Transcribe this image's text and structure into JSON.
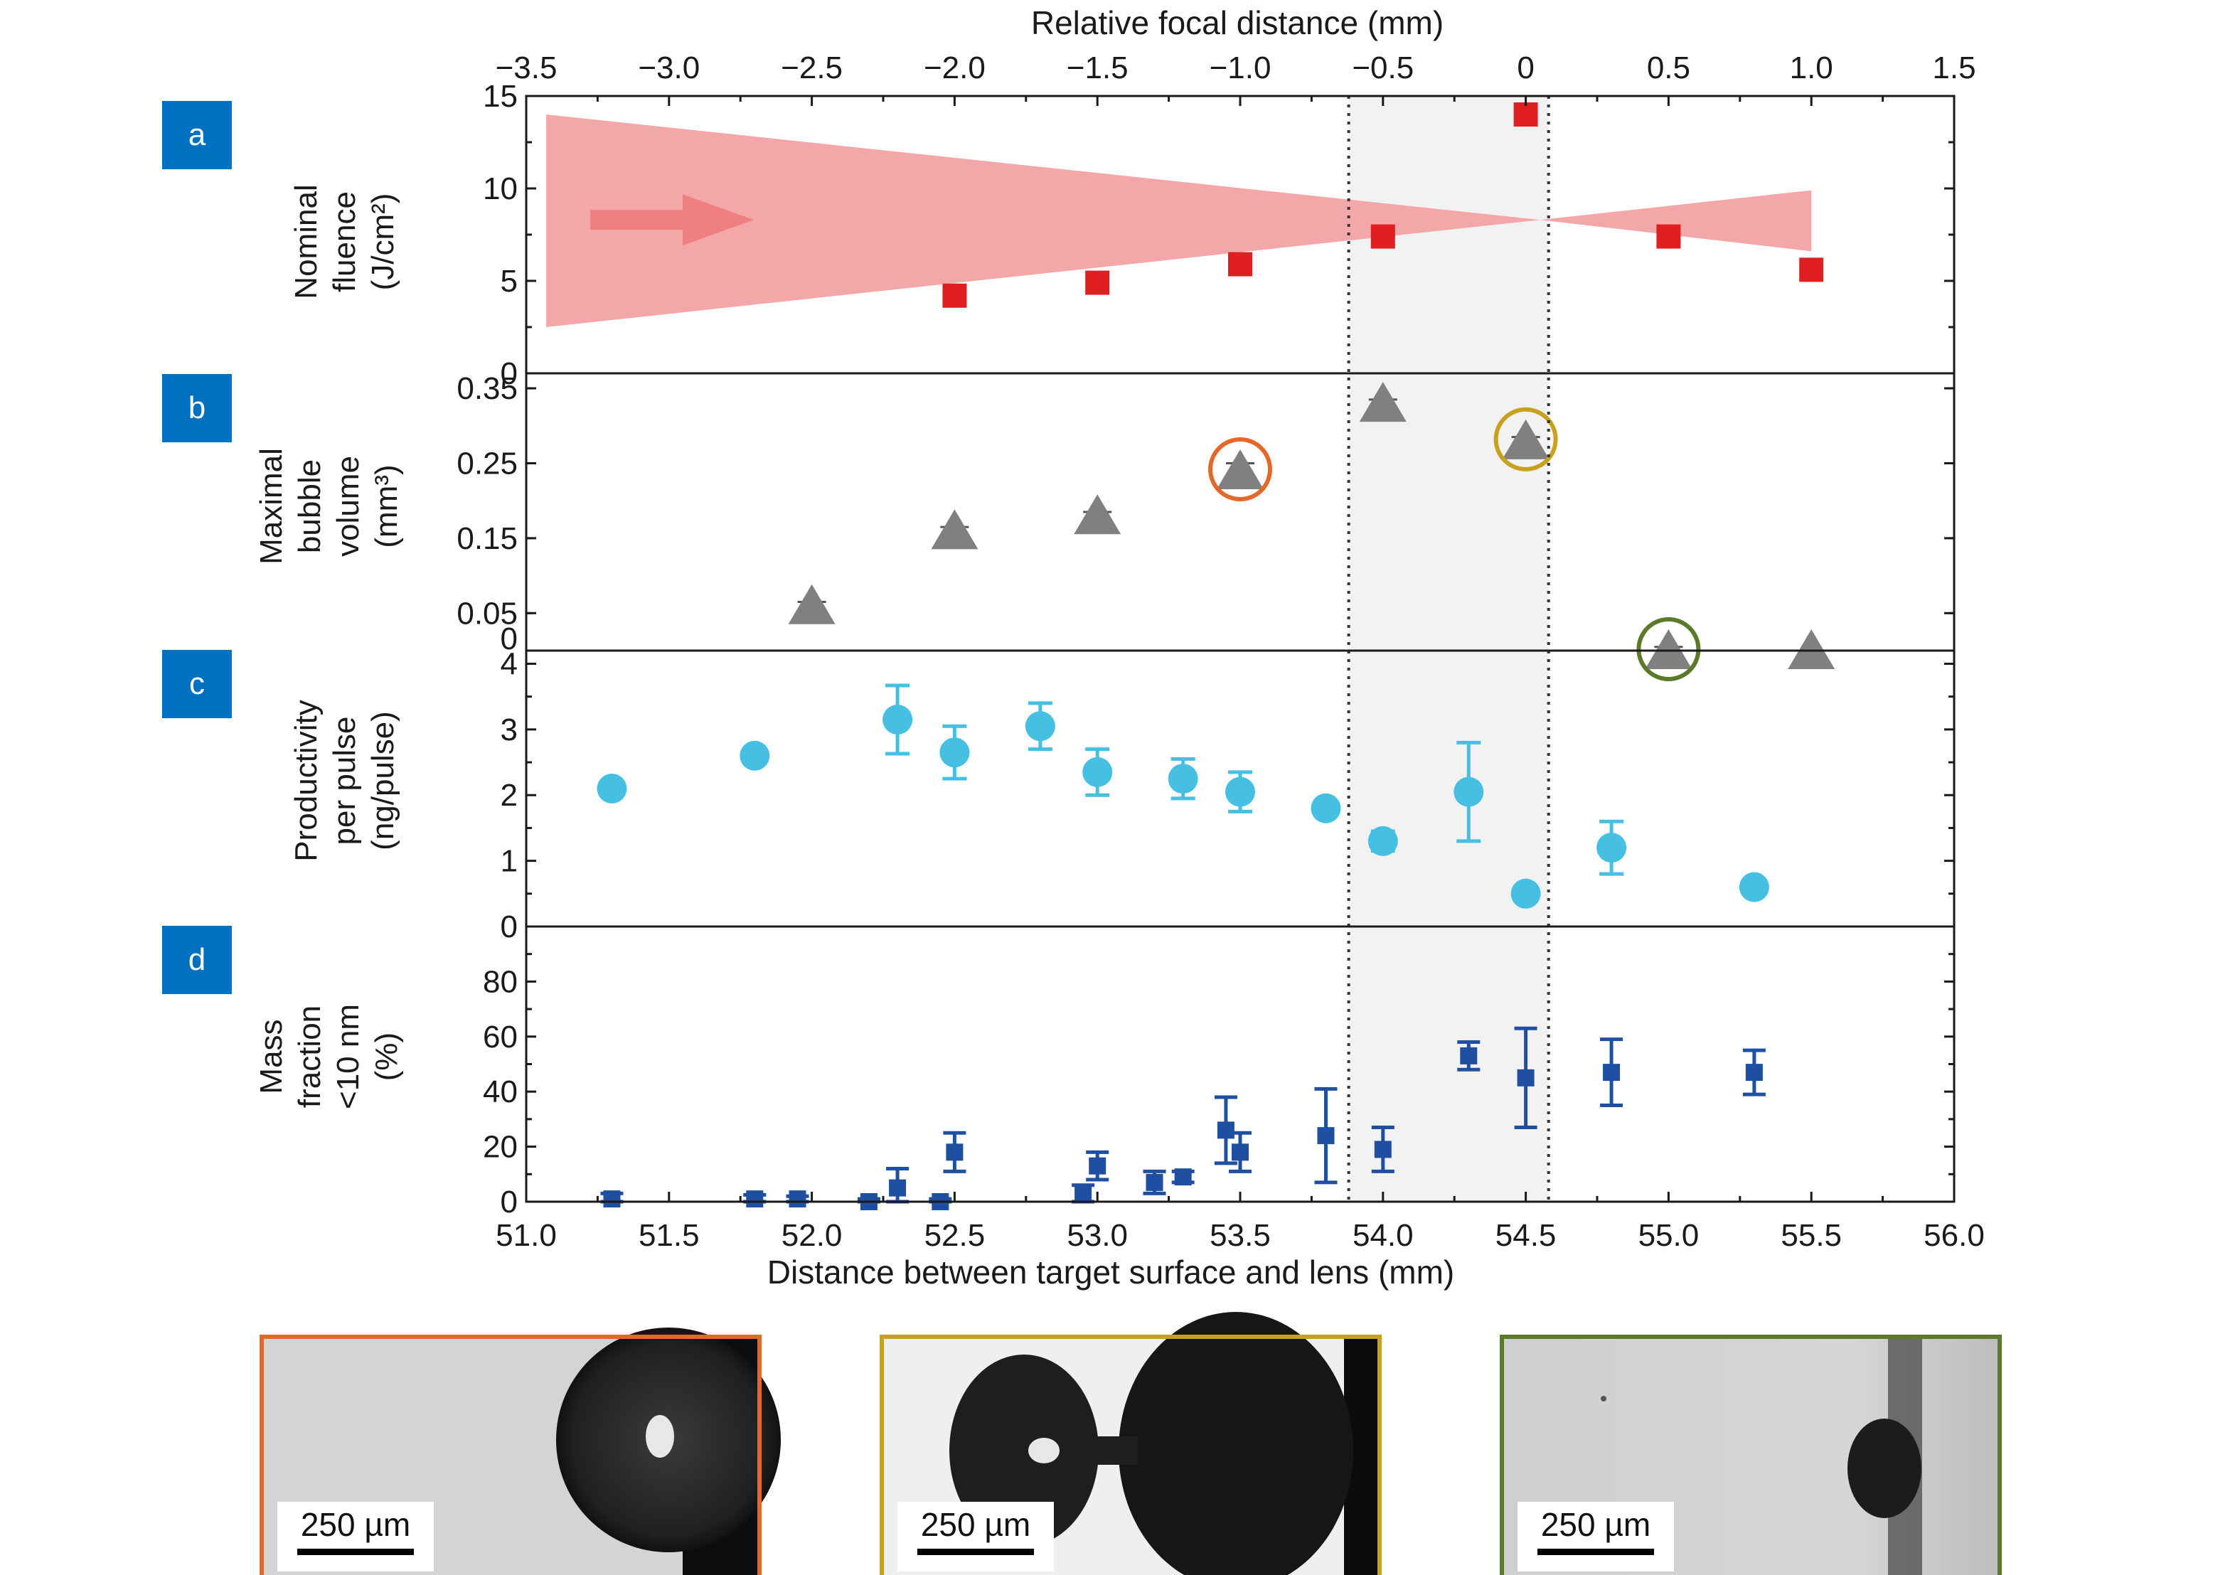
{
  "figure": {
    "top_axis": {
      "title": "Relative focal distance (mm)",
      "ticks": [
        "−3.5",
        "−3.0",
        "−2.5",
        "−2.0",
        "−1.5",
        "−1.0",
        "−0.5",
        "0",
        "0.5",
        "1.0",
        "1.5"
      ],
      "tick_values": [
        -3.5,
        -3.0,
        -2.5,
        -2.0,
        -1.5,
        -1.0,
        -0.5,
        0,
        0.5,
        1.0,
        1.5
      ],
      "range": [
        -3.5,
        1.5
      ]
    },
    "bottom_axis": {
      "title": "Distance between target surface and lens (mm)",
      "ticks": [
        "51.0",
        "51.5",
        "52.0",
        "52.5",
        "53.0",
        "53.5",
        "54.0",
        "54.5",
        "55.0",
        "55.5",
        "56.0"
      ],
      "tick_values": [
        51.0,
        51.5,
        52.0,
        52.5,
        53.0,
        53.5,
        54.0,
        54.5,
        55.0,
        55.5,
        56.0
      ],
      "range": [
        51.0,
        56.0
      ]
    },
    "focus_band": {
      "x_range": [
        53.88,
        54.58
      ],
      "color": "#f2f2f2"
    },
    "colors": {
      "badge": "#0070c0",
      "fluence": "#e02020",
      "beam": "#f4a7a9",
      "beam_arrow": "#ef7f80",
      "bubble": "#808080",
      "productivity": "#45c0e2",
      "mass_fraction": "#1f4fa0",
      "orange": "#e2692a",
      "gold": "#c8a11e",
      "green": "#5b7a2a"
    }
  },
  "panels": [
    {
      "badge": "a",
      "ylabel_lines": [
        "Nominal",
        "fluence",
        "(J/cm²)"
      ]
    },
    {
      "badge": "b",
      "ylabel_lines": [
        "Maximal",
        "bubble",
        "volume",
        "(mm³)"
      ]
    },
    {
      "badge": "c",
      "ylabel_lines": [
        "Productivity",
        "per pulse",
        "(ng/pulse)"
      ]
    },
    {
      "badge": "d",
      "ylabel_lines": [
        "Mass",
        "fraction",
        "<10 nm",
        "(%)"
      ]
    }
  ],
  "chart_data": [
    {
      "panel": "a",
      "type": "scatter",
      "marker": "square",
      "ylabel": "Nominal fluence (J/cm²)",
      "ylim": [
        0,
        15
      ],
      "yticks": [
        "0",
        "5",
        "10",
        "15"
      ],
      "ytick_values": [
        0,
        5,
        10,
        15
      ],
      "x": [
        52.5,
        53.0,
        53.5,
        54.0,
        54.5,
        55.0,
        55.5
      ],
      "y": [
        4.2,
        4.9,
        5.9,
        7.4,
        14.0,
        7.4,
        5.6
      ],
      "beam_cone": {
        "left_x": 51.07,
        "left_y": [
          2.5,
          14.0
        ],
        "waist_x": 54.55,
        "waist_y": 8.3,
        "right_x": 55.5,
        "right_y": [
          6.6,
          9.9
        ]
      }
    },
    {
      "panel": "b",
      "type": "scatter",
      "marker": "triangle",
      "ylabel": "Maximal bubble volume (mm³)",
      "ylim": [
        0,
        0.37
      ],
      "yticks": [
        "0",
        "0.05",
        "0.15",
        "0.25",
        "0.35"
      ],
      "ytick_values": [
        0,
        0.05,
        0.15,
        0.25,
        0.35
      ],
      "x": [
        52.0,
        52.5,
        53.0,
        53.5,
        54.0,
        54.5,
        55.0,
        55.5
      ],
      "y": [
        0.06,
        0.16,
        0.18,
        0.24,
        0.33,
        0.28,
        0.0,
        0.0
      ],
      "err": [
        0.005,
        0.005,
        0.005,
        0.01,
        0.005,
        0.005,
        0.005,
        0.0
      ],
      "highlights": [
        {
          "x": 53.5,
          "y": 0.24,
          "color": "orange"
        },
        {
          "x": 54.5,
          "y": 0.28,
          "color": "gold"
        },
        {
          "x": 55.0,
          "y": 0.0,
          "color": "green"
        }
      ]
    },
    {
      "panel": "c",
      "type": "scatter",
      "marker": "circle",
      "ylabel": "Productivity per pulse (ng/pulse)",
      "ylim": [
        0,
        4.2
      ],
      "yticks": [
        "0",
        "1",
        "2",
        "3",
        "4"
      ],
      "ytick_values": [
        0,
        1,
        2,
        3,
        4
      ],
      "x": [
        51.3,
        51.8,
        52.3,
        52.5,
        52.8,
        53.0,
        53.3,
        53.5,
        53.8,
        54.0,
        54.3,
        54.5,
        54.8,
        55.3
      ],
      "y": [
        2.1,
        2.6,
        3.15,
        2.65,
        3.05,
        2.35,
        2.25,
        2.05,
        1.8,
        1.3,
        2.05,
        0.5,
        1.2,
        0.6
      ],
      "err": [
        0.08,
        0.08,
        0.52,
        0.4,
        0.35,
        0.35,
        0.3,
        0.3,
        0.05,
        0.15,
        0.75,
        0.05,
        0.4,
        0.05
      ]
    },
    {
      "panel": "d",
      "type": "scatter",
      "marker": "square",
      "ylabel": "Mass fraction <10 nm (%)",
      "ylim": [
        0,
        100
      ],
      "yticks": [
        "0",
        "20",
        "40",
        "60",
        "80"
      ],
      "ytick_values": [
        0,
        20,
        40,
        60,
        80
      ],
      "x": [
        51.3,
        51.8,
        51.95,
        52.2,
        52.3,
        52.45,
        52.5,
        52.95,
        53.0,
        53.2,
        53.3,
        53.45,
        53.5,
        53.8,
        54.0,
        54.3,
        54.5,
        54.8,
        55.3
      ],
      "y": [
        1,
        1,
        1,
        0,
        5,
        0,
        18,
        3,
        13,
        7,
        9,
        26,
        18,
        24,
        19,
        53,
        45,
        47,
        47
      ],
      "err": [
        2,
        1.5,
        1,
        1,
        7,
        1,
        7,
        3,
        5,
        4,
        2,
        12,
        7,
        17,
        8,
        5,
        18,
        12,
        8
      ]
    }
  ],
  "images": [
    {
      "frame_color": "orange",
      "scale_bar": "250 µm"
    },
    {
      "frame_color": "gold",
      "scale_bar": "250 µm"
    },
    {
      "frame_color": "green",
      "scale_bar": "250 µm"
    }
  ]
}
